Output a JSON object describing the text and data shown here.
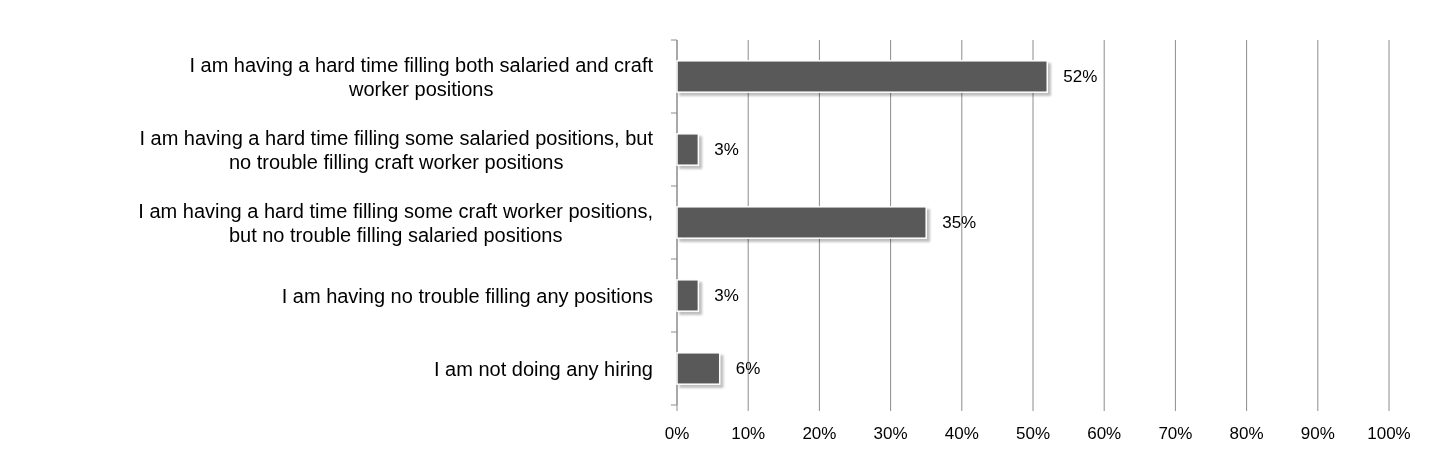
{
  "chart_data": {
    "type": "bar",
    "orientation": "horizontal",
    "categories": [
      "I am having a hard time filling both salaried and craft worker positions",
      "I am having a hard time filling some salaried positions, but no trouble filling craft worker positions",
      "I am having a hard time filling some craft worker positions, but no trouble filling salaried positions",
      "I am having no trouble filling any positions",
      "I am not doing any hiring"
    ],
    "values": [
      52,
      3,
      35,
      3,
      6
    ],
    "color": "#595959",
    "value_labels": [
      "52%",
      "3%",
      "35%",
      "3%",
      "6%"
    ],
    "xlim": [
      0,
      100
    ],
    "xticks": [
      {
        "value": 0,
        "label": "0%"
      },
      {
        "value": 10,
        "label": "10%"
      },
      {
        "value": 20,
        "label": "20%"
      },
      {
        "value": 30,
        "label": "30%"
      },
      {
        "value": 40,
        "label": "40%"
      },
      {
        "value": 50,
        "label": "50%"
      },
      {
        "value": 60,
        "label": "60%"
      },
      {
        "value": 70,
        "label": "70%"
      },
      {
        "value": 80,
        "label": "80%"
      },
      {
        "value": 90,
        "label": "90%"
      },
      {
        "value": 100,
        "label": "100%"
      }
    ],
    "grid": "x"
  }
}
